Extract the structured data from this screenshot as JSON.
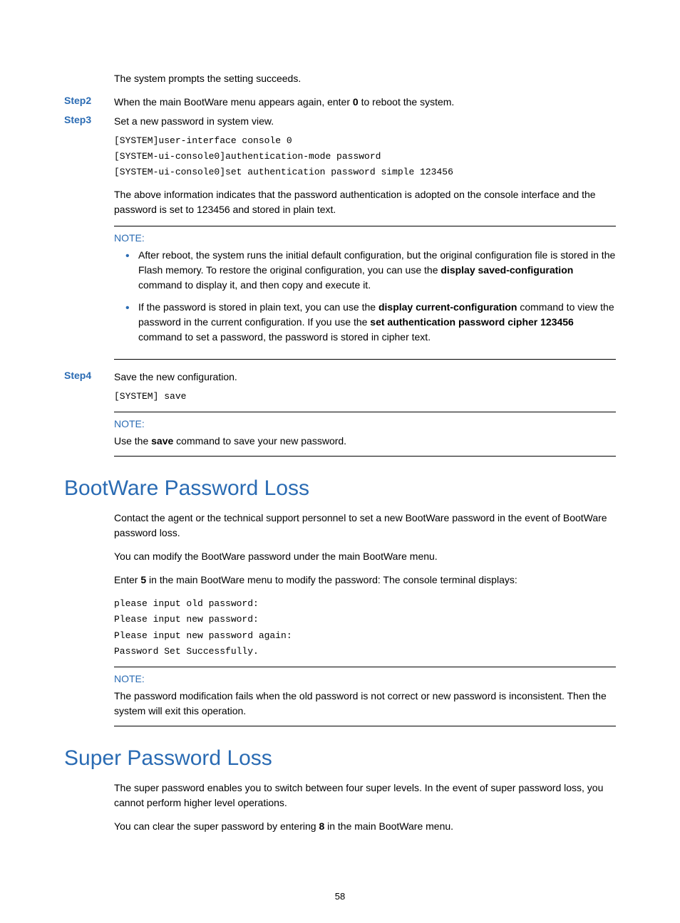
{
  "colors": {
    "accent": "#2a6bb3",
    "text": "#000000",
    "rule": "#000000",
    "background": "#ffffff"
  },
  "typography": {
    "body_font": "Arial",
    "body_size_pt": 11,
    "code_font": "Courier New",
    "code_size_pt": 10,
    "h2_size_pt": 22
  },
  "page_number": "58",
  "intro_text": "The system prompts the setting succeeds.",
  "step2": {
    "label": "Step2",
    "text_before": "When the main BootWare menu appears again, enter ",
    "bold": "0",
    "text_after": " to reboot the system."
  },
  "step3": {
    "label": "Step3",
    "text": "Set a new password in system view.",
    "code": "[SYSTEM]user-interface console 0\n[SYSTEM-ui-console0]authentication-mode password\n[SYSTEM-ui-console0]set authentication password simple 123456",
    "after_code": "The above information indicates that the password authentication is adopted on the console interface and the password is set to 123456 and stored in plain text."
  },
  "note1": {
    "label": "NOTE:",
    "item1_before": "After reboot, the system runs the initial default configuration, but the original configuration file is stored in the Flash memory. To restore the original configuration, you can use the ",
    "item1_bold": "display saved-configuration",
    "item1_after": " command to display it, and then copy and execute it.",
    "item2_before": "If the password is stored in plain text, you can use the ",
    "item2_bold1": "display current-configuration",
    "item2_mid": " command to view the password in the current configuration. If you use the ",
    "item2_bold2": "set authentication password cipher 123456",
    "item2_after": " command to set a password, the password is stored in cipher text."
  },
  "step4": {
    "label": "Step4",
    "text": "Save the new configuration.",
    "code": "[SYSTEM] save"
  },
  "note2": {
    "label": "NOTE:",
    "text_before": "Use the ",
    "bold": "save",
    "text_after": " command to save your new password."
  },
  "section_bw": {
    "title": "BootWare Password Loss",
    "p1": "Contact the agent or the technical support personnel to set a new BootWare password in the event of BootWare password loss.",
    "p2": "You can modify the BootWare password under the main BootWare menu.",
    "p3_before": "Enter ",
    "p3_bold": "5",
    "p3_after": " in the main BootWare menu to modify the password: The console terminal displays:",
    "code": "please input old password:\nPlease input new password:\nPlease input new password again:\nPassword Set Successfully."
  },
  "note3": {
    "label": "NOTE:",
    "text": "The password modification fails when the old password is not correct or new password is inconsistent. Then the system will exit this operation."
  },
  "section_sp": {
    "title": "Super Password Loss",
    "p1": "The super password enables you to switch between four super levels. In the event of super password loss, you cannot perform higher level operations.",
    "p2_before": "You can clear the super password by entering ",
    "p2_bold": "8",
    "p2_after": " in the main BootWare menu."
  }
}
